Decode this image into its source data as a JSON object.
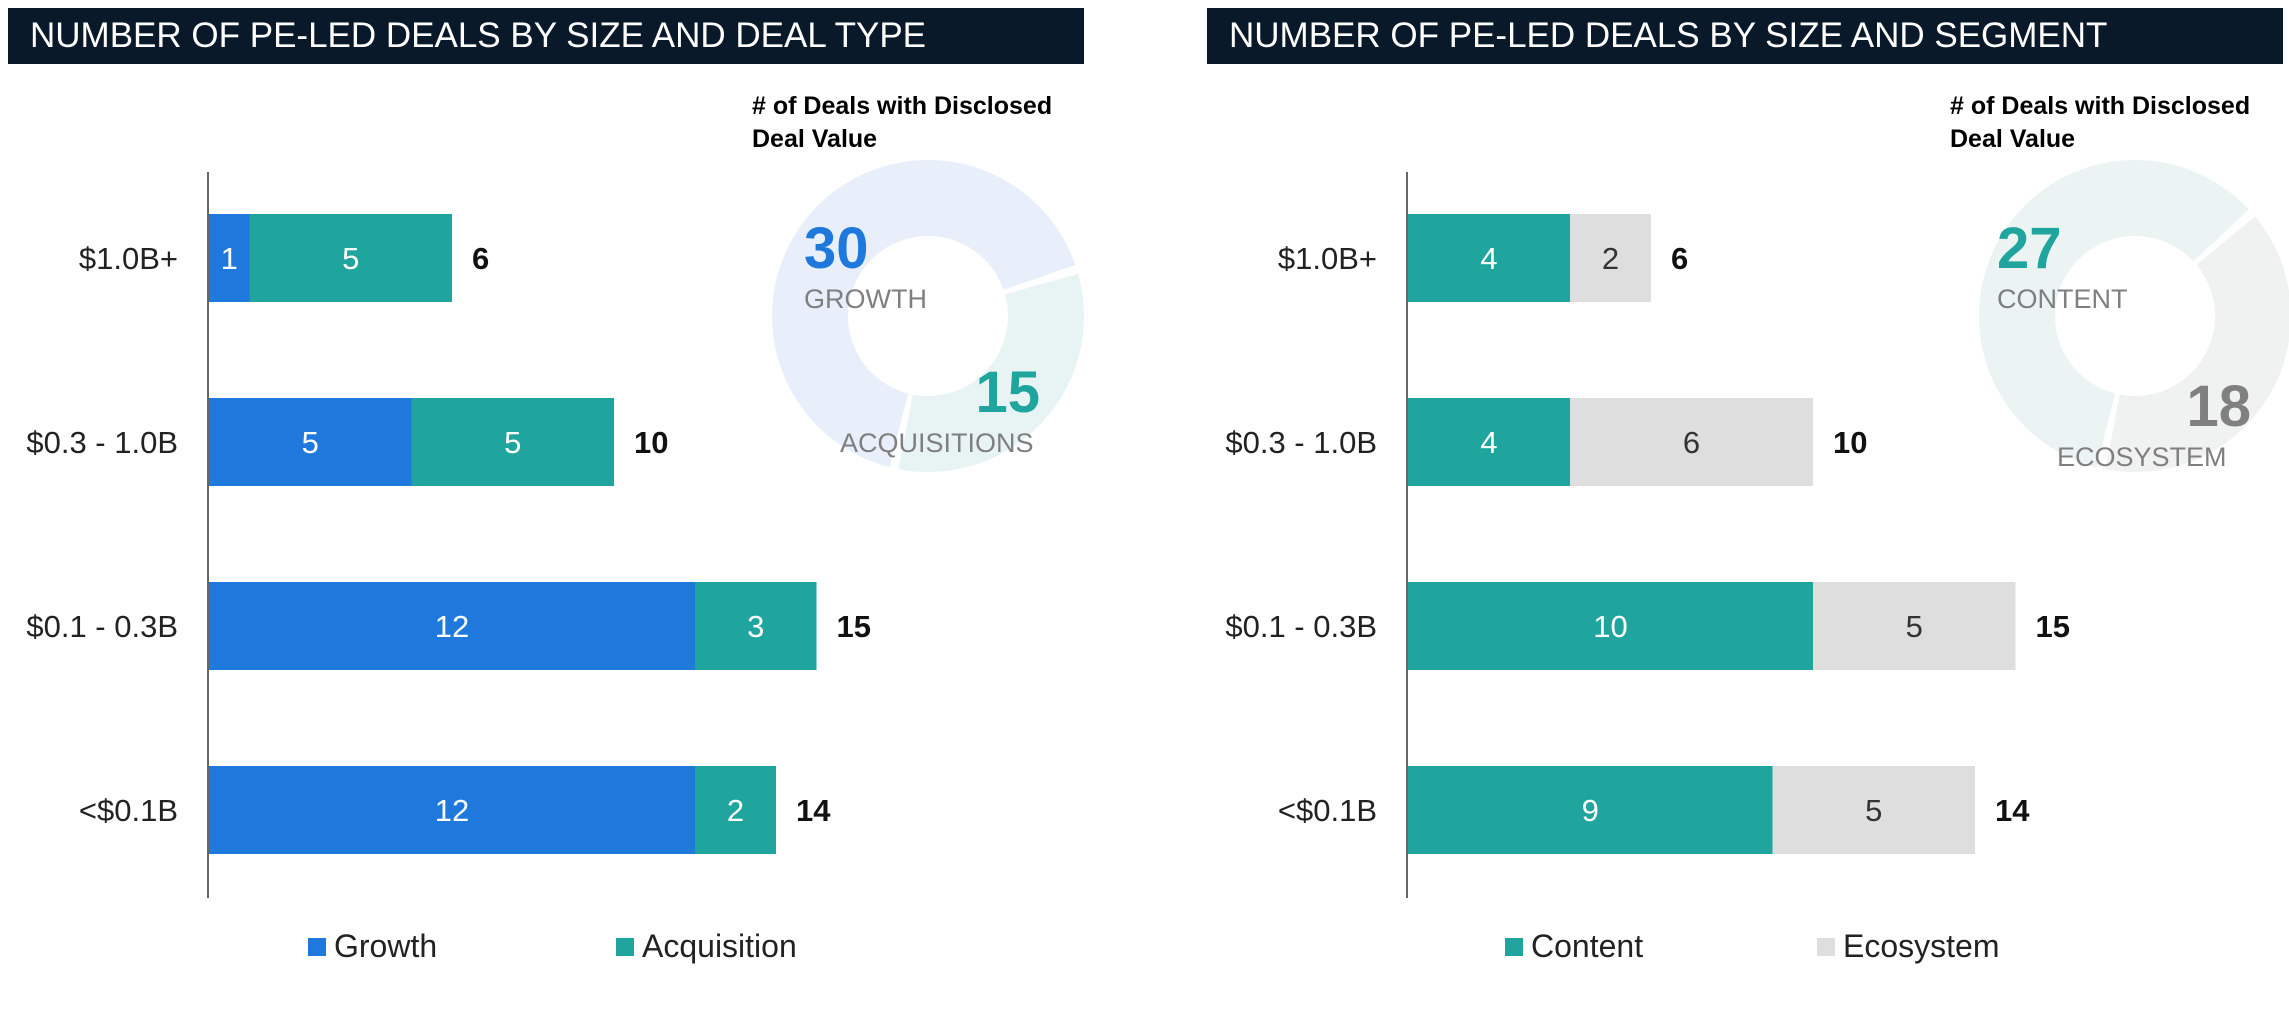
{
  "charts": [
    {
      "header": "NUMBER OF PE-LED DEALS BY SIZE AND DEAL TYPE",
      "donut": {
        "caption_line1": "# of Deals with Disclosed",
        "caption_line2": "Deal Value",
        "first": {
          "value": "30",
          "label": "GROWTH",
          "color": "#1f78dc"
        },
        "second": {
          "value": "15",
          "label": "ACQUISITIONS",
          "color": "#1fa59e"
        }
      },
      "legend": [
        {
          "label": "Growth",
          "color": "#1f78dc"
        },
        {
          "label": "Acquisition",
          "color": "#1fa59e"
        }
      ]
    },
    {
      "header": "NUMBER OF PE-LED DEALS BY SIZE AND SEGMENT",
      "donut": {
        "caption_line1": "# of Deals with Disclosed",
        "caption_line2": "Deal Value",
        "first": {
          "value": "27",
          "label": "CONTENT",
          "color": "#1fa59e"
        },
        "second": {
          "value": "18",
          "label": "ECOSYSTEM",
          "color": "#808080"
        }
      },
      "legend": [
        {
          "label": "Content",
          "color": "#1fa59e"
        },
        {
          "label": "Ecosystem",
          "color": "#dedede"
        }
      ]
    }
  ],
  "chart_data": [
    {
      "type": "bar",
      "orientation": "horizontal",
      "stacked": true,
      "title": "NUMBER OF PE-LED DEALS BY SIZE AND DEAL TYPE",
      "categories": [
        "$1.0B+",
        "$0.3 - 1.0B",
        "$0.1 - 0.3B",
        "<$0.1B"
      ],
      "series": [
        {
          "name": "Growth",
          "values": [
            1,
            5,
            12,
            12
          ],
          "color": "#1f78dc",
          "label_color": "#ffffff"
        },
        {
          "name": "Acquisition",
          "values": [
            5,
            5,
            3,
            2
          ],
          "color": "#1fa59e",
          "label_color": "#ffffff"
        }
      ],
      "totals": [
        6,
        10,
        15,
        14
      ],
      "xlim": [
        0,
        16
      ],
      "grid": false,
      "legend": "bottom",
      "donut": {
        "values": [
          30,
          15
        ],
        "labels": [
          "GROWTH",
          "ACQUISITIONS"
        ],
        "colors": [
          "#e8effb",
          "#e8f4f3"
        ]
      }
    },
    {
      "type": "bar",
      "orientation": "horizontal",
      "stacked": true,
      "title": "NUMBER OF PE-LED DEALS BY SIZE AND SEGMENT",
      "categories": [
        "$1.0B+",
        "$0.3 - 1.0B",
        "$0.1 - 0.3B",
        "<$0.1B"
      ],
      "series": [
        {
          "name": "Content",
          "values": [
            4,
            4,
            10,
            9
          ],
          "color": "#1fa59e",
          "label_color": "#ffffff"
        },
        {
          "name": "Ecosystem",
          "values": [
            2,
            6,
            5,
            5
          ],
          "color": "#dedede",
          "label_color": "#333333"
        }
      ],
      "totals": [
        6,
        10,
        15,
        14
      ],
      "xlim": [
        0,
        16
      ],
      "grid": false,
      "legend": "bottom",
      "donut": {
        "values": [
          27,
          18
        ],
        "labels": [
          "CONTENT",
          "ECOSYSTEM"
        ],
        "colors": [
          "#ebf4f3",
          "#f0f2f1"
        ]
      }
    }
  ]
}
